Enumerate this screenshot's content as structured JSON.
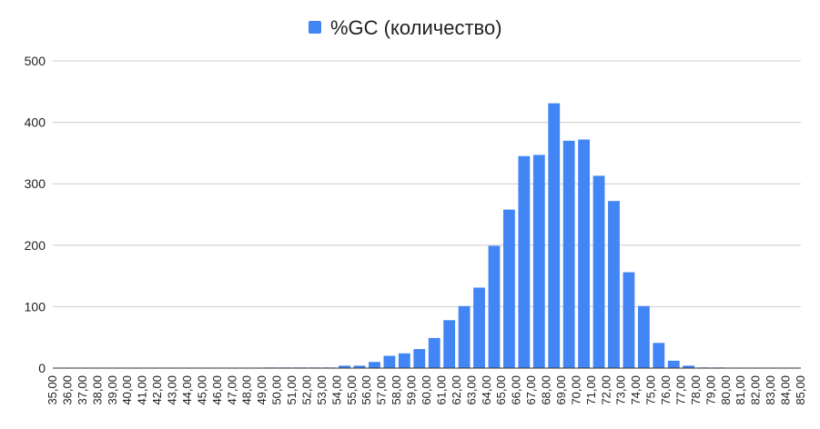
{
  "chart_data": {
    "type": "bar",
    "title": "",
    "xlabel": "",
    "ylabel": "",
    "series": [
      {
        "name": "%GC (количество)",
        "color": "#4285F4",
        "values": [
          0,
          0,
          0,
          0,
          0,
          0,
          0,
          0,
          0,
          0,
          0,
          0,
          0,
          0,
          1,
          1,
          1,
          1,
          1,
          4,
          4,
          10,
          20,
          24,
          31,
          49,
          78,
          101,
          131,
          199,
          258,
          345,
          347,
          431,
          370,
          372,
          313,
          272,
          156,
          101,
          41,
          12,
          4,
          1,
          1,
          0,
          0,
          0,
          0,
          0,
          0
        ]
      }
    ],
    "categories": [
      "35,00",
      "36,00",
      "37,00",
      "38,00",
      "39,00",
      "40,00",
      "41,00",
      "42,00",
      "43,00",
      "44,00",
      "45,00",
      "46,00",
      "47,00",
      "48,00",
      "49,00",
      "50,00",
      "51,00",
      "52,00",
      "53,00",
      "54,00",
      "55,00",
      "56,00",
      "57,00",
      "58,00",
      "59,00",
      "60,00",
      "61,00",
      "62,00",
      "63,00",
      "64,00",
      "65,00",
      "66,00",
      "67,00",
      "68,00",
      "69,00",
      "70,00",
      "71,00",
      "72,00",
      "73,00",
      "74,00",
      "75,00",
      "76,00",
      "77,00",
      "78,00",
      "79,00",
      "80,00",
      "81,00",
      "82,00",
      "83,00",
      "84,00",
      "85,00"
    ],
    "ylim": [
      0,
      500
    ],
    "yticks": [
      0,
      100,
      200,
      300,
      400,
      500
    ],
    "grid": true,
    "legend_position": "top-center",
    "colors": {
      "bar": "#4285F4",
      "grid": "#cccccc",
      "axis": "#333333",
      "text": "#222222"
    }
  }
}
